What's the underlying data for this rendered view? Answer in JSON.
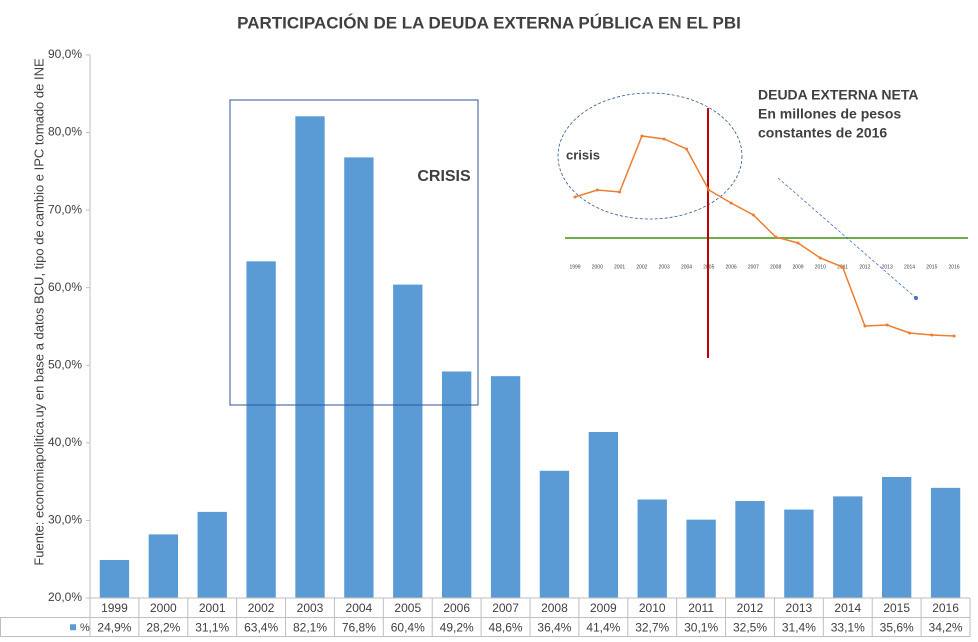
{
  "chart_data": [
    {
      "type": "bar",
      "title": "PARTICIPACIÓN DE LA DEUDA EXTERNA PÚBLICA EN EL PBI",
      "y_label": "Fuente: economiapolitica.uy en base a datos BCU, tipo de cambio e IPC tomado de INE",
      "annotation": "CRISIS",
      "categories": [
        "1999",
        "2000",
        "2001",
        "2002",
        "2003",
        "2004",
        "2005",
        "2006",
        "2007",
        "2008",
        "2009",
        "2010",
        "2011",
        "2012",
        "2013",
        "2014",
        "2015",
        "2016"
      ],
      "series": [
        {
          "name": "%",
          "color": "#5b9bd5",
          "values": [
            24.9,
            28.2,
            31.1,
            63.4,
            82.1,
            76.8,
            60.4,
            49.2,
            48.6,
            36.4,
            41.4,
            32.7,
            30.1,
            32.5,
            31.4,
            33.1,
            35.6,
            34.2
          ],
          "value_labels": [
            "24,9%",
            "28,2%",
            "31,1%",
            "63,4%",
            "82,1%",
            "76,8%",
            "60,4%",
            "49,2%",
            "48,6%",
            "36,4%",
            "41,4%",
            "32,7%",
            "30,1%",
            "32,5%",
            "31,4%",
            "33,1%",
            "35,6%",
            "34,2%"
          ]
        }
      ],
      "ylim": [
        20,
        90
      ],
      "yticks": [
        {
          "value": 20,
          "label": "20,0%"
        },
        {
          "value": 30,
          "label": "30,0%"
        },
        {
          "value": 40,
          "label": "40,0%"
        },
        {
          "value": 50,
          "label": "50,0%"
        },
        {
          "value": 60,
          "label": "60,0%"
        },
        {
          "value": 70,
          "label": "70,0%"
        },
        {
          "value": 80,
          "label": "80,0%"
        },
        {
          "value": 90,
          "label": "90,0%"
        }
      ]
    },
    {
      "type": "line",
      "title_lines": [
        "DEUDA EXTERNA NETA",
        "En millones de pesos",
        "constantes de 2016"
      ],
      "annotation": "crisis",
      "categories": [
        "1999",
        "2000",
        "2001",
        "2002",
        "2003",
        "2004",
        "2005",
        "2006",
        "2007",
        "2008",
        "2009",
        "2010",
        "2011",
        "2012",
        "2013",
        "2014",
        "2015",
        "2016"
      ],
      "series": [
        {
          "name": "Deuda externa neta",
          "color": "#ed7d31",
          "values": [
            244000,
            272000,
            264000,
            488000,
            476000,
            436000,
            272000,
            220000,
            172000,
            84000,
            60000,
            0,
            -36000,
            -272000,
            -268000,
            -300000,
            -308000,
            -312000
          ]
        }
      ],
      "ylim": [
        -408000,
        632000
      ]
    }
  ]
}
